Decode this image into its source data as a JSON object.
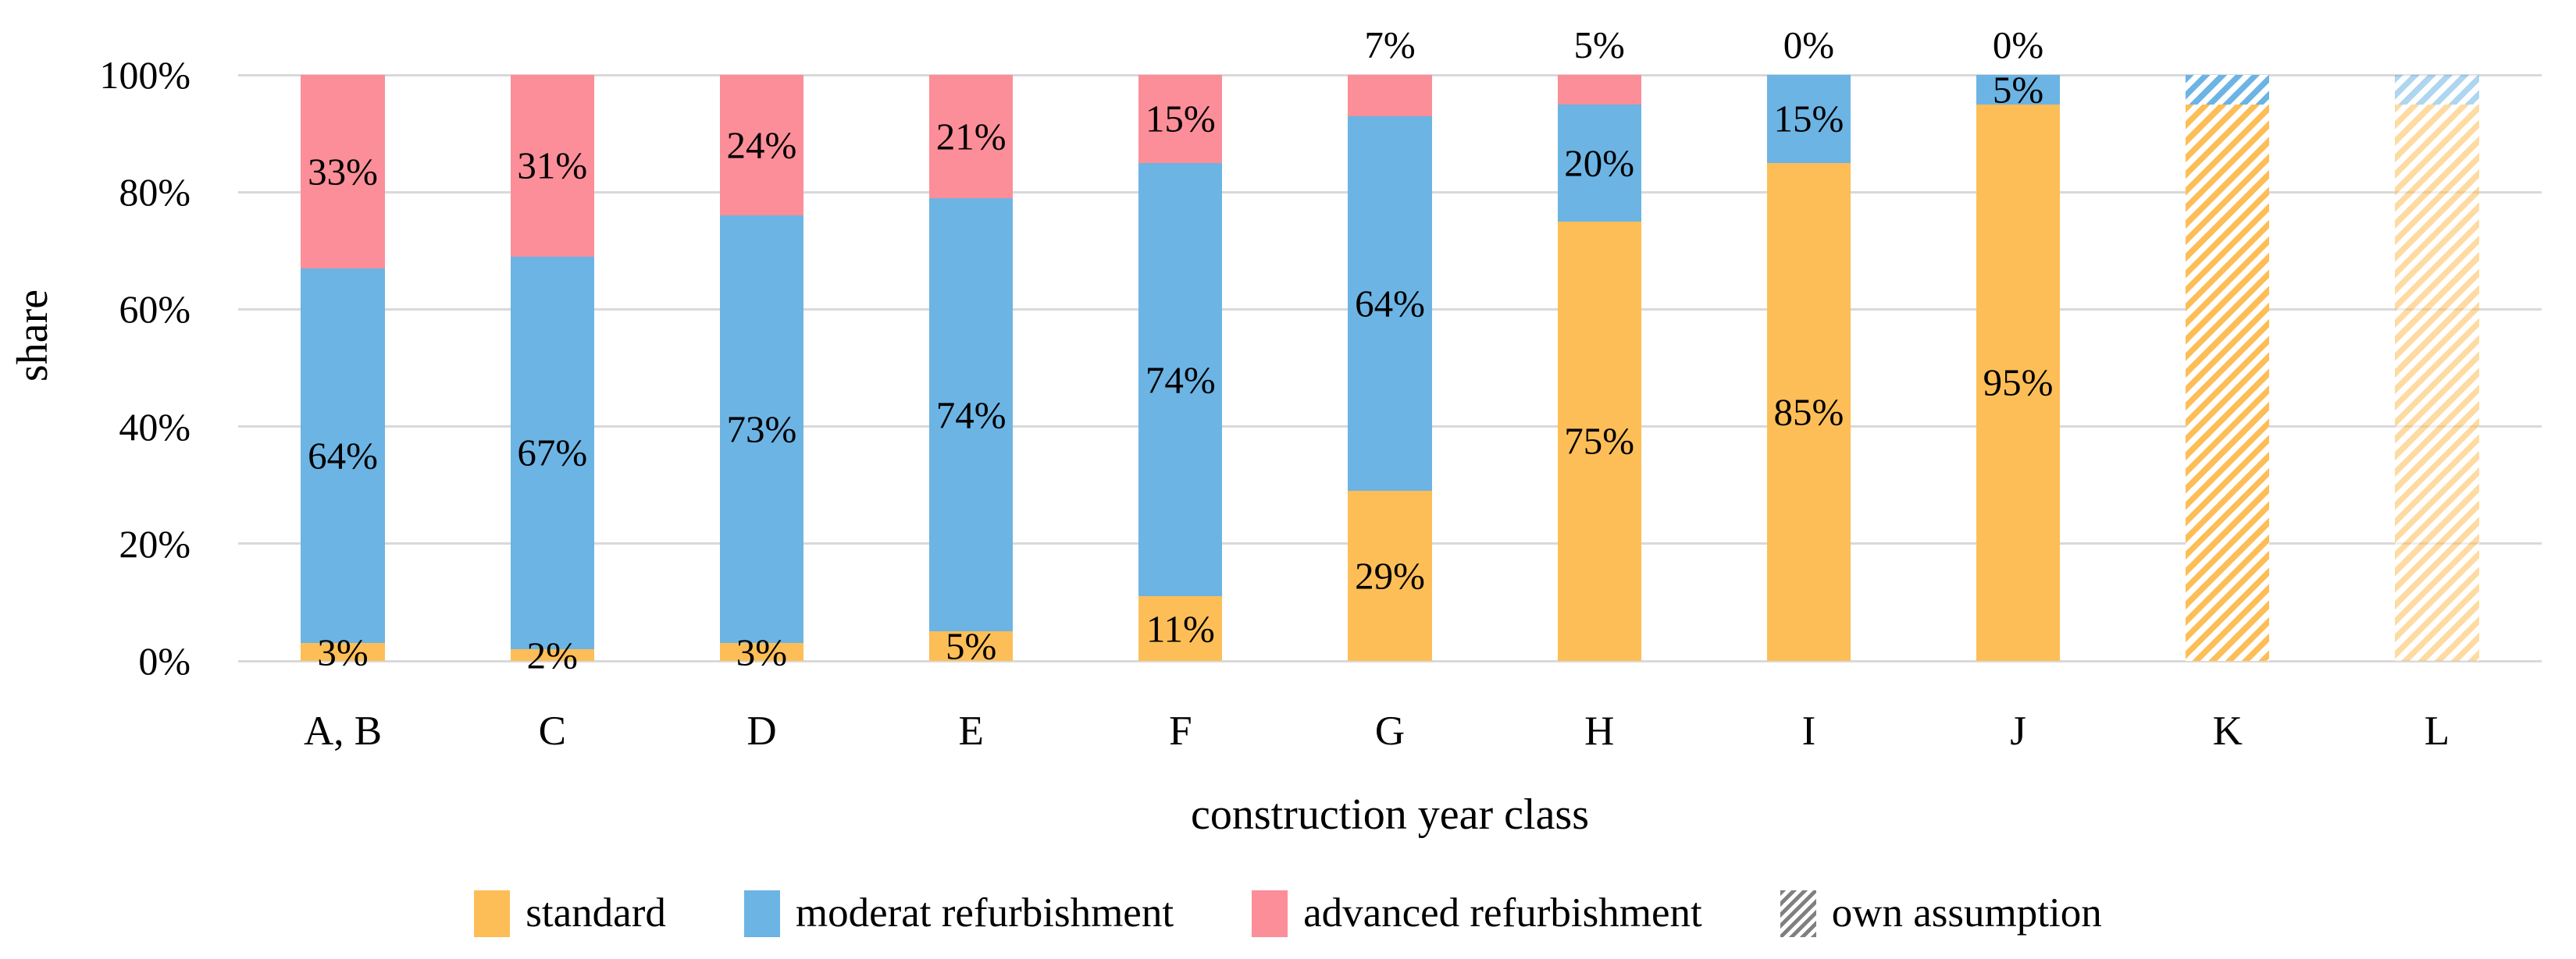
{
  "figure": {
    "background_color": "#FFFFFF",
    "text_color": "#000000"
  },
  "chart_data": {
    "type": "bar",
    "stacked": true,
    "title": "",
    "xlabel": "construction year class",
    "ylabel": "share",
    "ylim": [
      0,
      100
    ],
    "ytick_step_percent": 20,
    "ytick_labels": [
      "0%",
      "20%",
      "40%",
      "60%",
      "80%",
      "100%"
    ],
    "grid": true,
    "gridline_color": "#D9D9D9",
    "categories": [
      "A, B",
      "C",
      "D",
      "E",
      "F",
      "G",
      "H",
      "I",
      "J",
      "K",
      "L"
    ],
    "series": [
      {
        "name": "standard",
        "color": "#FDBE57",
        "values": [
          3,
          2,
          3,
          5,
          11,
          29,
          75,
          85,
          95,
          95,
          95
        ]
      },
      {
        "name": "moderat refurbishment",
        "color": "#6CB4E4",
        "values": [
          64,
          67,
          73,
          74,
          74,
          64,
          20,
          15,
          5,
          5,
          5
        ]
      },
      {
        "name": "advanced refurbishment",
        "color": "#FB8E98",
        "values": [
          33,
          31,
          24,
          21,
          15,
          7,
          5,
          0,
          0,
          0,
          0
        ]
      }
    ],
    "data_labels": {
      "labeled_categories": [
        "A, B",
        "C",
        "D",
        "E",
        "F",
        "G",
        "H",
        "I",
        "J"
      ],
      "last_series_label_above_bar": [
        "G",
        "H",
        "I",
        "J"
      ],
      "suffix": "%"
    },
    "own_assumption": {
      "hatched_categories": [
        "K",
        "L"
      ],
      "lighter_categories": [
        "L"
      ],
      "hatch_direction": "diagonal-up",
      "legend_label": "own assumption",
      "legend_swatch_color": "#808080"
    },
    "legend_position": "bottom",
    "legend": [
      "standard",
      "moderat refurbishment",
      "advanced refurbishment",
      "own assumption"
    ]
  }
}
